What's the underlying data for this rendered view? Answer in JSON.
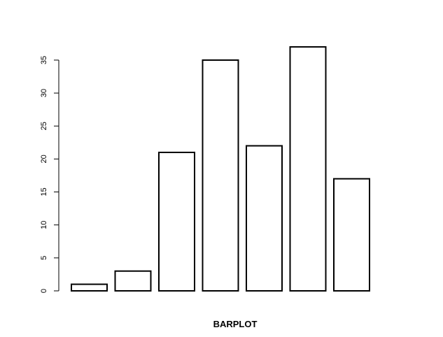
{
  "chart_data": {
    "type": "bar",
    "categories": [
      "",
      "",
      "",
      "",
      "",
      "",
      ""
    ],
    "values": [
      1,
      3,
      21,
      35,
      22,
      37,
      17
    ],
    "title": "",
    "xlabel": "BARPLOT",
    "ylabel": "",
    "ylim": [
      0,
      37
    ],
    "yticks": [
      0,
      5,
      10,
      15,
      20,
      25,
      30,
      35
    ],
    "ytick_labels": [
      "0",
      "5",
      "10",
      "15",
      "20",
      "25",
      "30",
      "35"
    ],
    "grid": false,
    "legend": "none",
    "colors": {
      "bar_fill": "#ffffff",
      "bar_stroke": "#000000",
      "axis": "#000000"
    }
  }
}
